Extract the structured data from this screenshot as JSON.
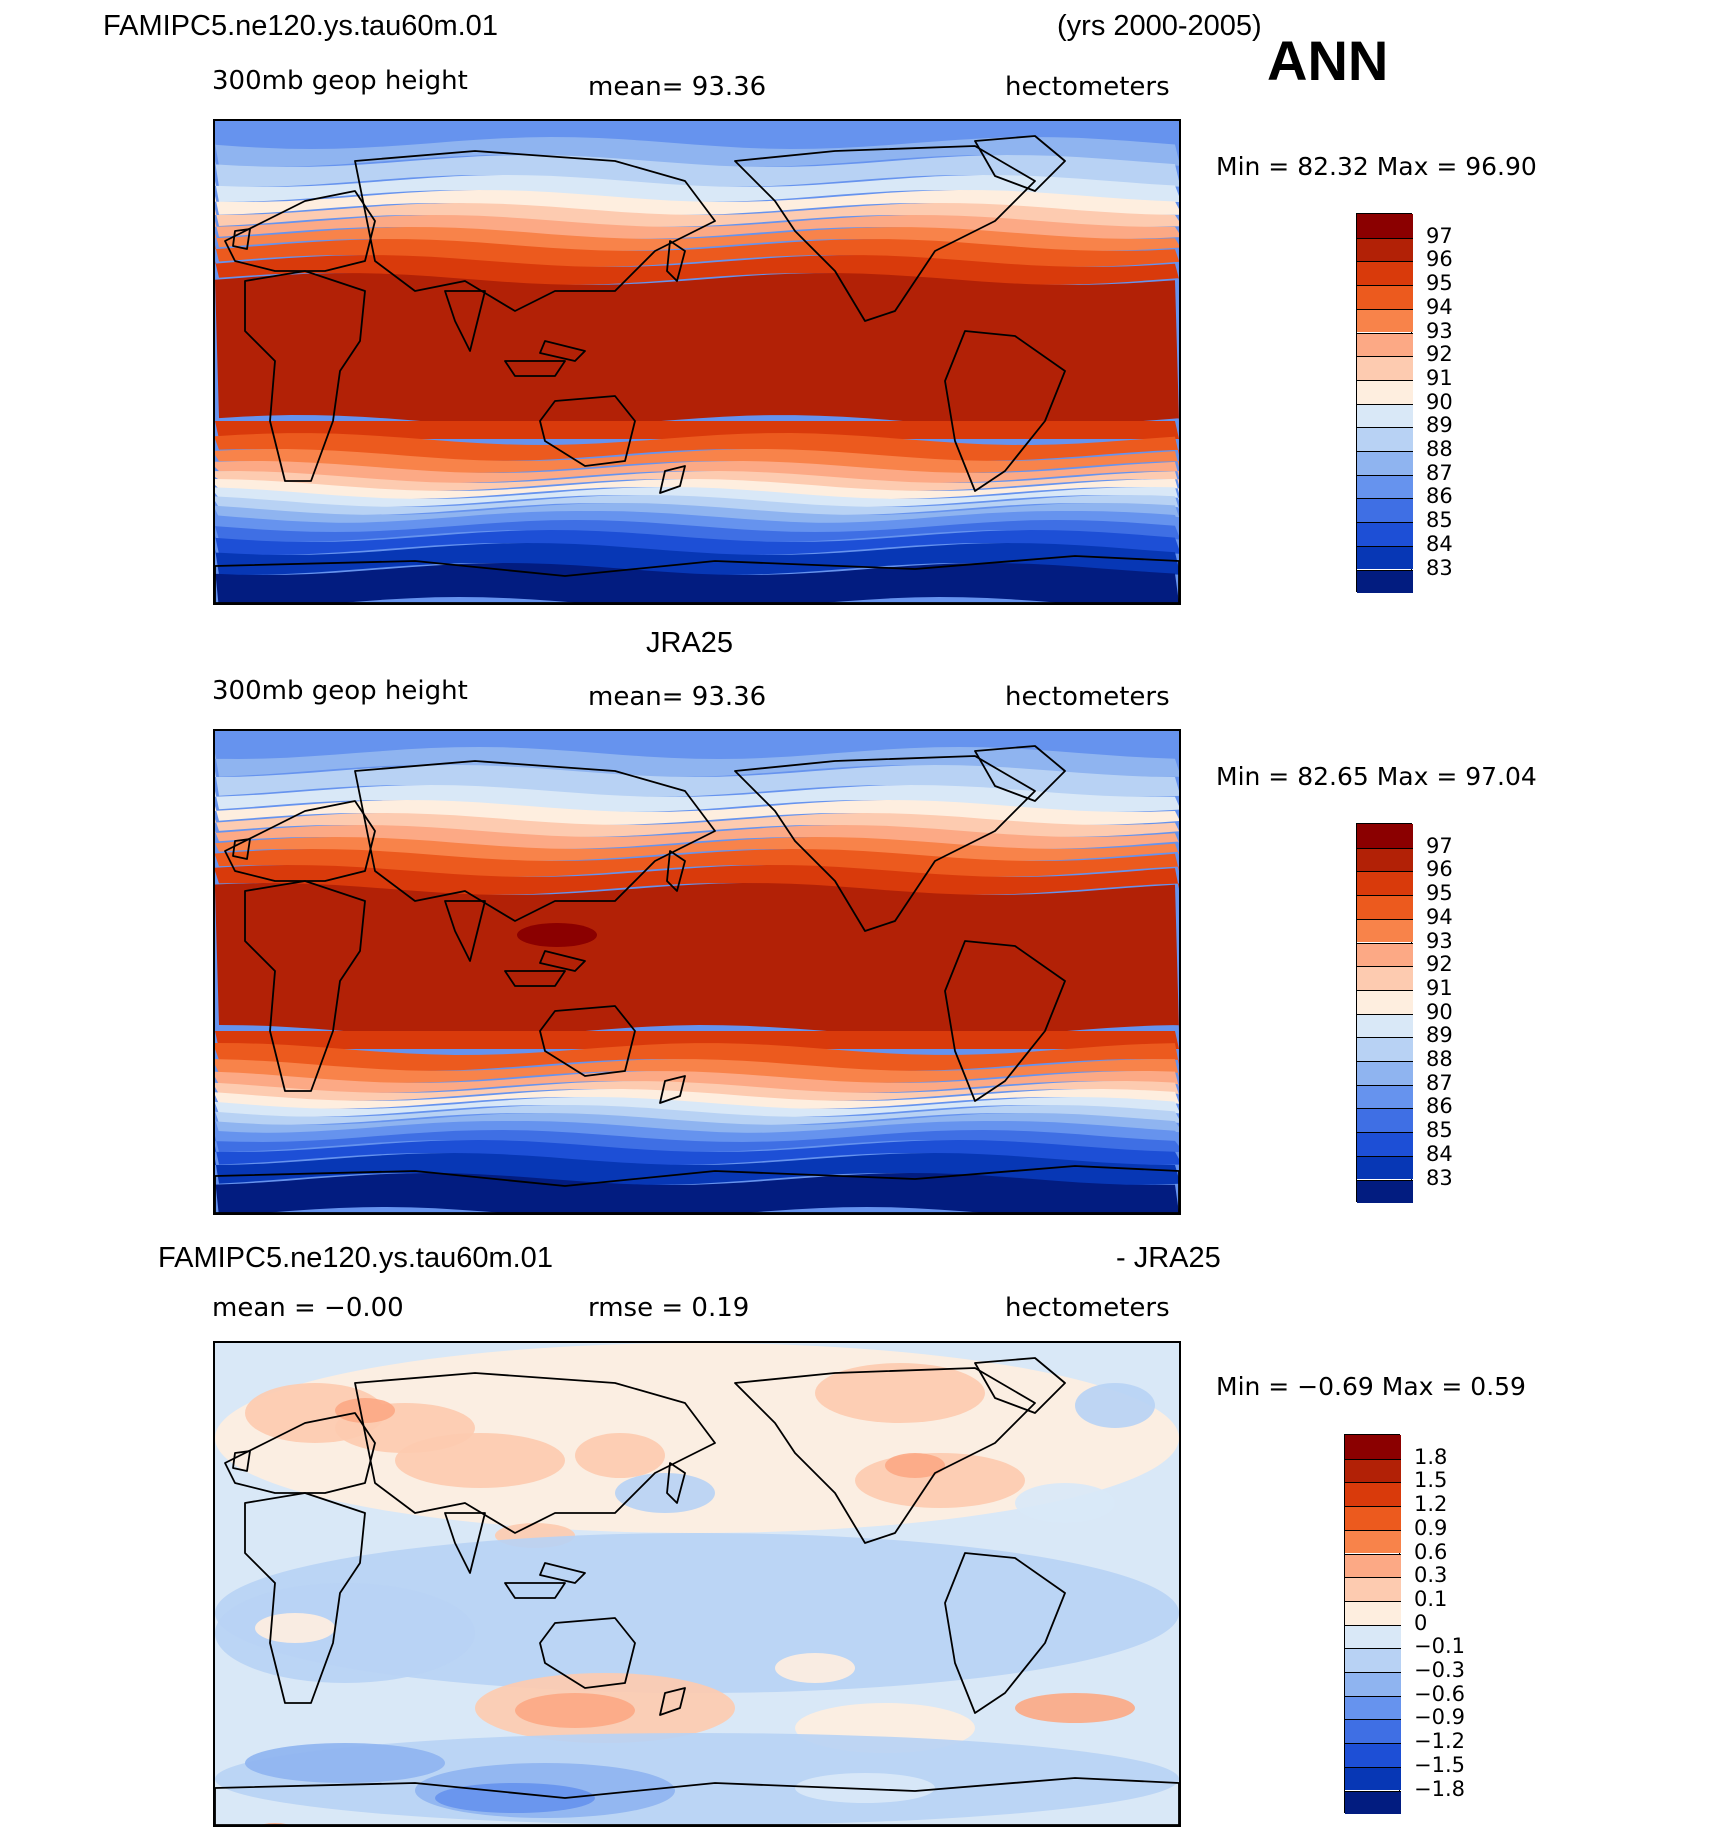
{
  "header": {
    "case": "FAMIPC5.ne120.ys.tau60m.01",
    "years": "(yrs 2000-2005)",
    "season": "ANN"
  },
  "panels": [
    {
      "id": "model",
      "title": "",
      "left_label": "300mb  geop  height",
      "mean_label": "mean=   93.36",
      "units": "hectometers",
      "min_max": "Min =   82.32  Max =   96.90"
    },
    {
      "id": "obs",
      "title": "JRA25",
      "left_label": "300mb  geop  height",
      "mean_label": "mean=   93.36",
      "units": "hectometers",
      "min_max": "Min =   82.65  Max =   97.04"
    },
    {
      "id": "diff",
      "title_left": "FAMIPC5.ne120.ys.tau60m.01",
      "title_right": "- JRA25",
      "left_label": "mean  =   −0.00",
      "mean_label": "rmse  =     0.19",
      "units": "hectometers",
      "min_max": "Min =   −0.69  Max =     0.59"
    }
  ],
  "chart_data": [
    {
      "type": "heatmap",
      "title": "300mb geop height",
      "units": "hectometers",
      "mean": 93.36,
      "min": 82.32,
      "max": 96.9,
      "levels": [
        "97",
        "96",
        "95",
        "94",
        "93",
        "92",
        "91",
        "90",
        "89",
        "88",
        "87",
        "86",
        "85",
        "84",
        "83"
      ],
      "colors": [
        "#8b0000",
        "#b22106",
        "#d93a0b",
        "#ec5a1e",
        "#f8834a",
        "#fca985",
        "#fdcbb0",
        "#feeedf",
        "#d9e8f7",
        "#b8d2f4",
        "#8fb4f0",
        "#6693ee",
        "#3f6fe4",
        "#1d4fd6",
        "#0737b5",
        "#021c80"
      ]
    },
    {
      "type": "heatmap",
      "title": "JRA25",
      "units": "hectometers",
      "mean": 93.36,
      "min": 82.65,
      "max": 97.04,
      "levels": [
        "97",
        "96",
        "95",
        "94",
        "93",
        "92",
        "91",
        "90",
        "89",
        "88",
        "87",
        "86",
        "85",
        "84",
        "83"
      ],
      "colors": [
        "#8b0000",
        "#b22106",
        "#d93a0b",
        "#ec5a1e",
        "#f8834a",
        "#fca985",
        "#fdcbb0",
        "#feeedf",
        "#d9e8f7",
        "#b8d2f4",
        "#8fb4f0",
        "#6693ee",
        "#3f6fe4",
        "#1d4fd6",
        "#0737b5",
        "#021c80"
      ]
    },
    {
      "type": "heatmap",
      "title": "FAMIPC5.ne120.ys.tau60m.01 - JRA25",
      "units": "hectometers",
      "mean": -0.0,
      "rmse": 0.19,
      "min": -0.69,
      "max": 0.59,
      "levels": [
        "1.8",
        "1.5",
        "1.2",
        "0.9",
        "0.6",
        "0.3",
        "0.1",
        "0",
        "−0.1",
        "−0.3",
        "−0.6",
        "−0.9",
        "−1.2",
        "−1.5",
        "−1.8"
      ],
      "colors": [
        "#8b0000",
        "#b22106",
        "#d93a0b",
        "#ec5a1e",
        "#f8834a",
        "#fca985",
        "#fdcbb0",
        "#feeedf",
        "#d9e8f7",
        "#b8d2f4",
        "#8fb4f0",
        "#6693ee",
        "#3f6fe4",
        "#1d4fd6",
        "#0737b5",
        "#021c80"
      ]
    }
  ]
}
